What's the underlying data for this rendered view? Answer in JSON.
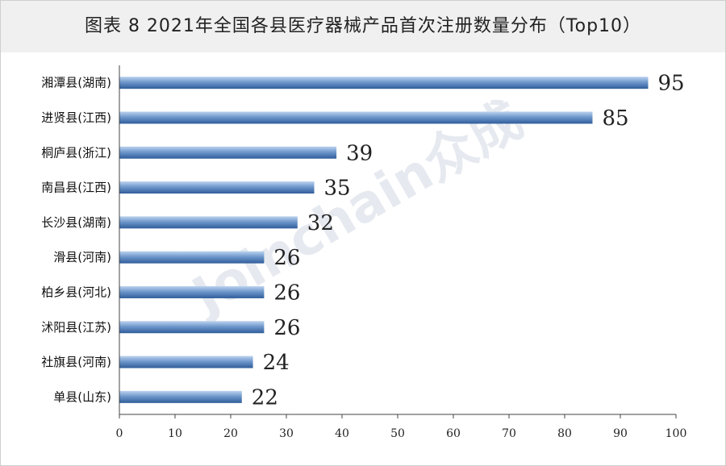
{
  "title": "图表 8  2021年全国各县医疗器械产品首次注册数量分布（Top10）",
  "watermark": "Joinchain众成",
  "colors": {
    "bar_top": "#bcd3ee",
    "bar_mid": "#6f98cc",
    "bar_bottom": "#2f5c9a",
    "axis": "#444444"
  },
  "chart_data": {
    "type": "bar",
    "orientation": "horizontal",
    "categories": [
      "湘潭县(湖南)",
      "进贤县(江西)",
      "桐庐县(浙江)",
      "南昌县(江西)",
      "长沙县(湖南)",
      "滑县(河南)",
      "柏乡县(河北)",
      "沭阳县(江苏)",
      "社旗县(河南)",
      "单县(山东)"
    ],
    "values": [
      95,
      85,
      39,
      35,
      32,
      26,
      26,
      26,
      24,
      22
    ],
    "xlim": [
      0,
      100
    ],
    "xticks": [
      0,
      10,
      20,
      30,
      40,
      50,
      60,
      70,
      80,
      90,
      100
    ],
    "grid": false,
    "data_labels": true
  }
}
